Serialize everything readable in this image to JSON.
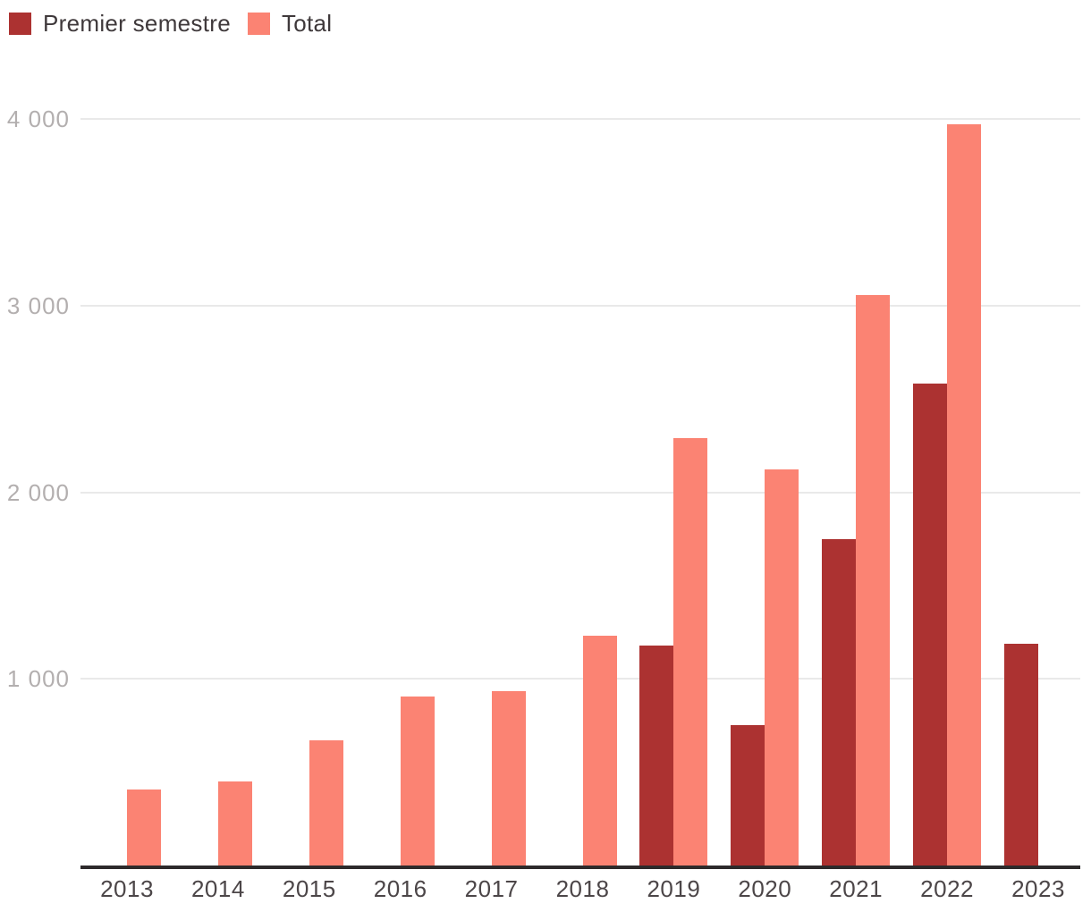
{
  "chart_data": {
    "type": "bar",
    "categories": [
      "2013",
      "2014",
      "2015",
      "2016",
      "2017",
      "2018",
      "2019",
      "2020",
      "2021",
      "2022",
      "2023"
    ],
    "series": [
      {
        "name": "Premier semestre",
        "color": "#ac3231",
        "values": [
          null,
          null,
          null,
          null,
          null,
          null,
          1180,
          750,
          1750,
          2580,
          1190
        ]
      },
      {
        "name": "Total",
        "color": "#fb8373",
        "values": [
          405,
          450,
          670,
          905,
          935,
          1230,
          2290,
          2120,
          3055,
          3970,
          null
        ]
      }
    ],
    "ylim": [
      0,
      4000
    ],
    "yticks": [
      {
        "value": 1000,
        "label": "1 000"
      },
      {
        "value": 2000,
        "label": "2 000"
      },
      {
        "value": 3000,
        "label": "3 000"
      },
      {
        "value": 4000,
        "label": "4 000"
      }
    ],
    "grid": true,
    "legend_position": "top-left"
  },
  "colors": {
    "background": "#ffffff",
    "gridline": "#e9e9e9",
    "axis_line": "#2d2a2b",
    "y_tick_label": "#b3afaf",
    "x_tick_label": "#4c4648",
    "legend_text": "#3f393b"
  }
}
